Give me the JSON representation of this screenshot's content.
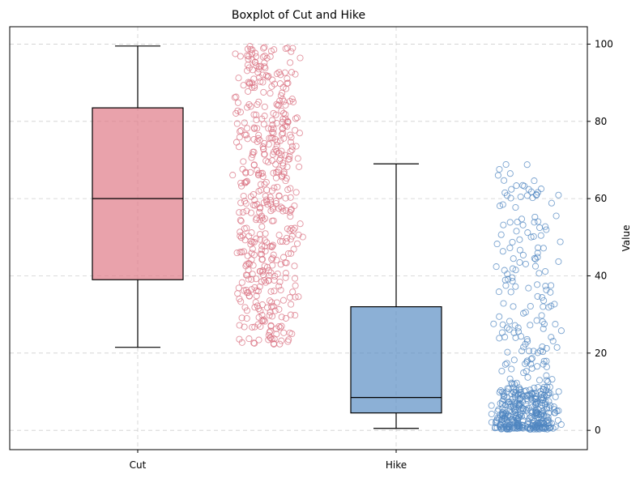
{
  "chart_data": {
    "type": "box",
    "title": "Boxplot of Cut and Hike",
    "xlabel": "",
    "ylabel": "Value",
    "ylim": [
      -5,
      104.5
    ],
    "yticks": [
      0,
      20,
      40,
      60,
      80,
      100
    ],
    "grid": true,
    "yaxis_position": "right",
    "categories": [
      "Cut",
      "Hike"
    ],
    "series": [
      {
        "name": "Cut",
        "box": {
          "whisker_low": 21.5,
          "q1": 39,
          "median": 60,
          "q3": 83.5,
          "whisker_high": 99.5
        },
        "color": "#e07b88",
        "point_color": "#d97080",
        "jitter_count": 500,
        "jitter_range": [
          22,
          99.5
        ],
        "jitter_skew": "uniform"
      },
      {
        "name": "Hike",
        "box": {
          "whisker_low": 0.5,
          "q1": 4.5,
          "median": 8.5,
          "q3": 32,
          "whisker_high": 69
        },
        "color": "#5b8ec4",
        "point_color": "#4f86c0",
        "jitter_count": 500,
        "jitter_range": [
          0.3,
          69
        ],
        "jitter_skew": "low"
      }
    ]
  }
}
